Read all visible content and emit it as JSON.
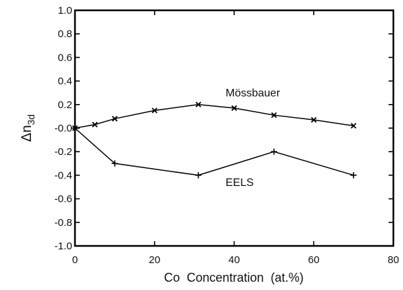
{
  "chart_data": {
    "type": "line",
    "xlabel": "Co  Concentration  (at.%)",
    "ylabel_main": "Δn",
    "ylabel_sub": "3d",
    "xlim": [
      0,
      80
    ],
    "ylim": [
      -1.0,
      1.0
    ],
    "x_ticks": [
      "0",
      "20",
      "40",
      "60",
      "80"
    ],
    "y_ticks": [
      "1.0",
      "0.8",
      "0.6",
      "0.4",
      "0.2",
      "-0.0",
      "-0.2",
      "-0.4",
      "-0.6",
      "-0.8",
      "-1.0"
    ],
    "grid": false,
    "series": [
      {
        "name": "Mössbauer",
        "marker": "x",
        "points": [
          [
            0,
            0.0
          ],
          [
            5,
            0.03
          ],
          [
            10,
            0.08
          ],
          [
            20,
            0.15
          ],
          [
            31,
            0.2
          ],
          [
            40,
            0.17
          ],
          [
            50,
            0.11
          ],
          [
            60,
            0.07
          ],
          [
            70,
            0.02
          ]
        ]
      },
      {
        "name": "EELS",
        "marker": "+",
        "points": [
          [
            0,
            0.0
          ],
          [
            10,
            -0.3
          ],
          [
            31,
            -0.4
          ],
          [
            50,
            -0.2
          ],
          [
            70,
            -0.4
          ]
        ]
      }
    ]
  }
}
